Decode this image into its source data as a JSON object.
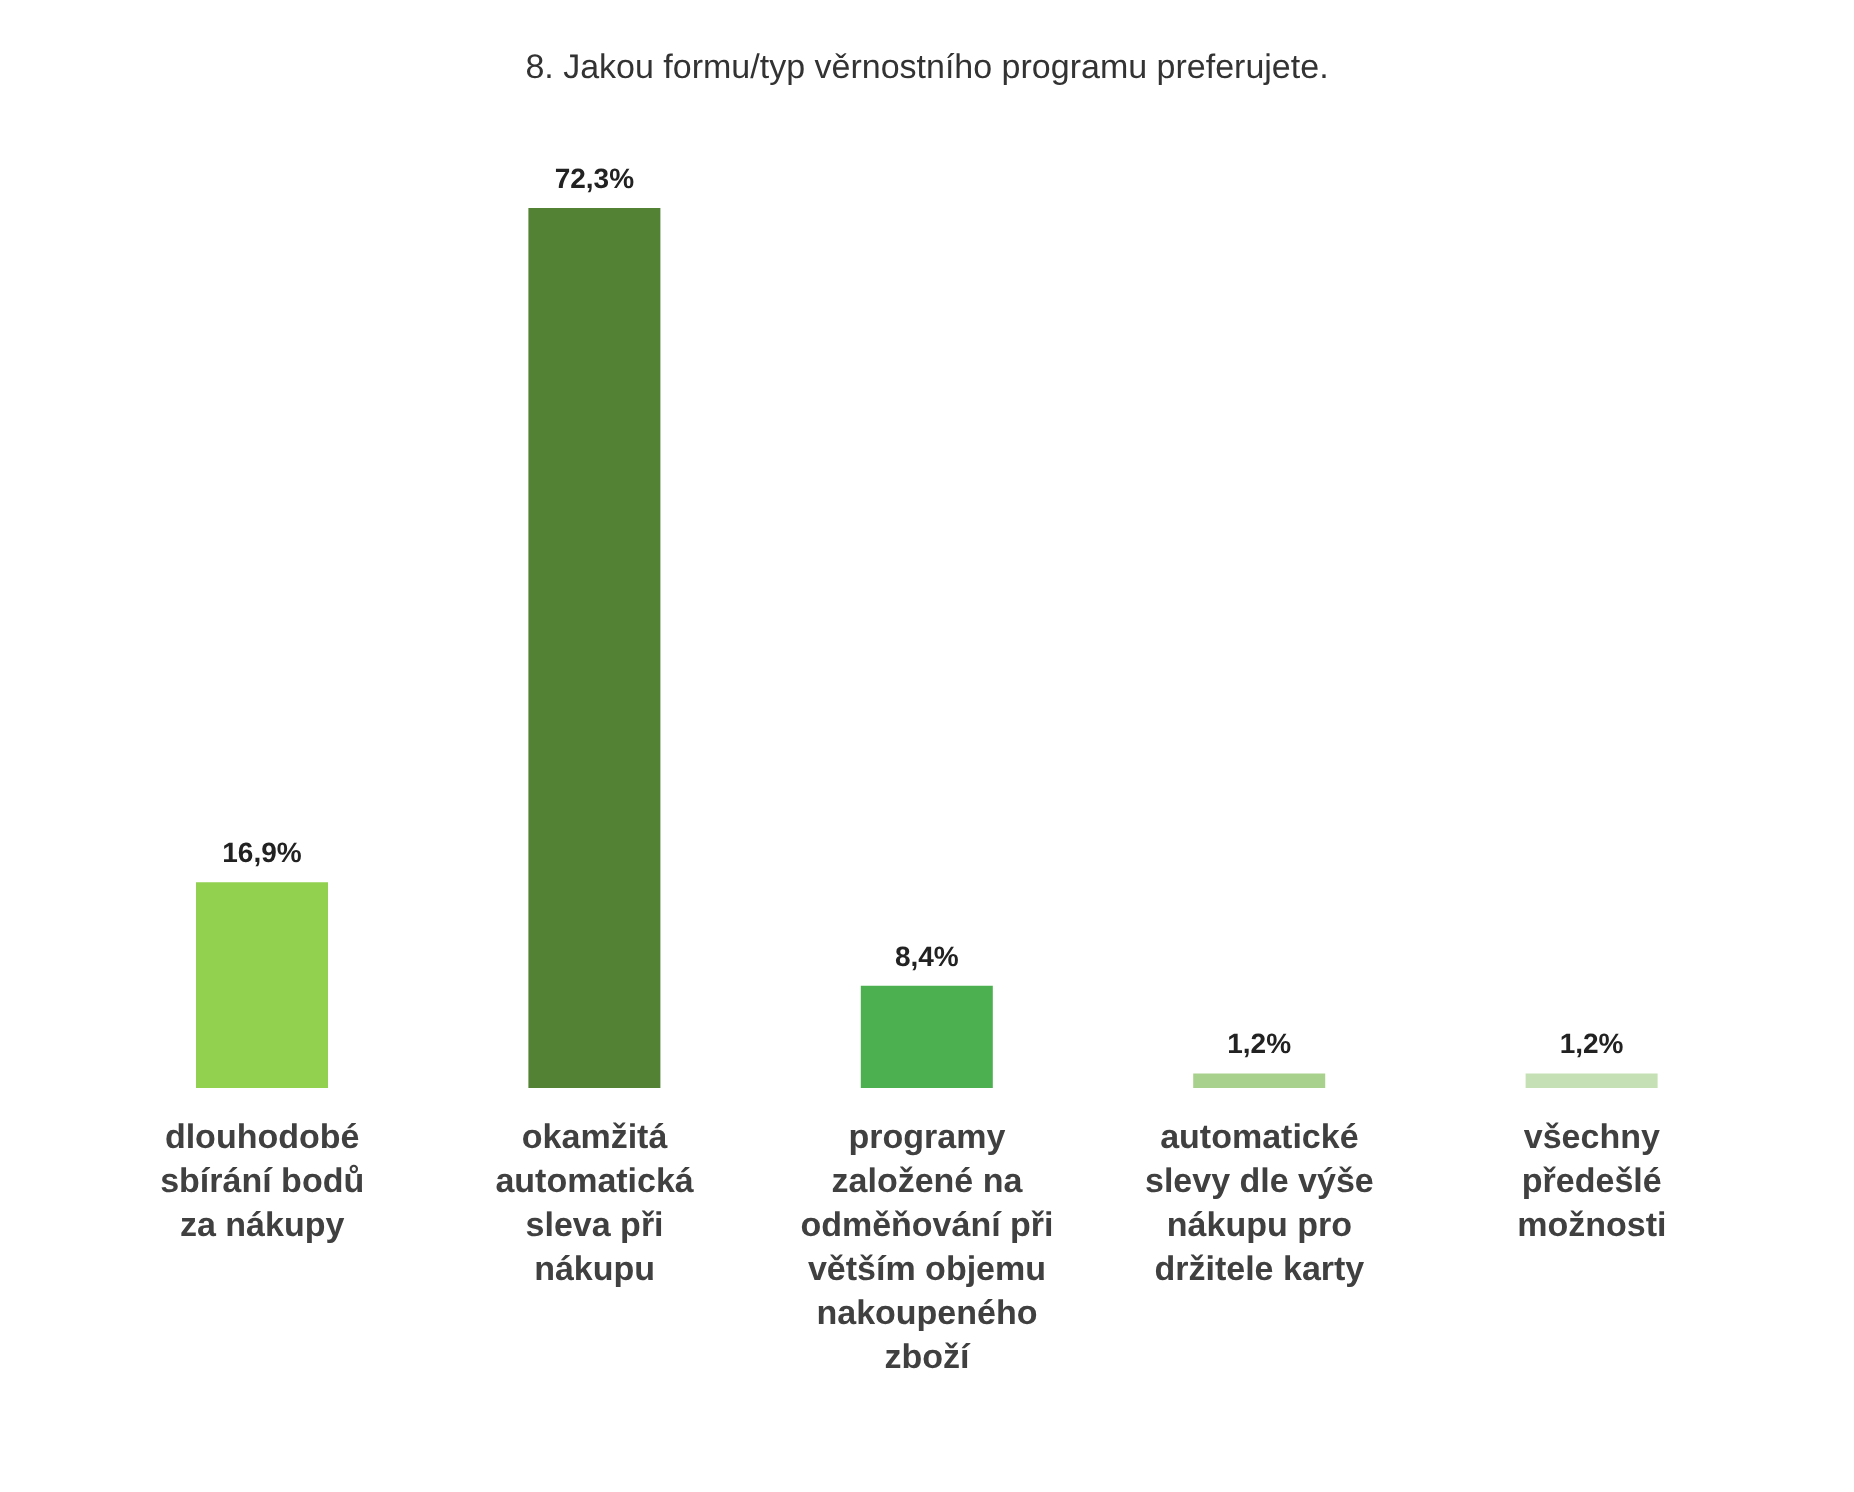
{
  "chart_data": {
    "type": "bar",
    "title": "8. Jakou formu/typ věrnostního programu preferujete.",
    "categories": [
      "dlouhodobé sbírání bodů za nákupy",
      "okamžitá automatická sleva při nákupu",
      "programy založené na odměňování při větším objemu nakoupeného zboží",
      "automatické slevy dle výše nákupu pro držitele karty",
      "všechny předešlé možnosti"
    ],
    "values": [
      16.9,
      72.3,
      8.4,
      1.2,
      1.2
    ],
    "colors": [
      "#92d050",
      "#548235",
      "#4caf50",
      "#a9d18e",
      "#c5e0b4"
    ],
    "value_labels": [
      "16,9%",
      "72,3%",
      "8,4%",
      "1,2%",
      "1,2%"
    ]
  }
}
